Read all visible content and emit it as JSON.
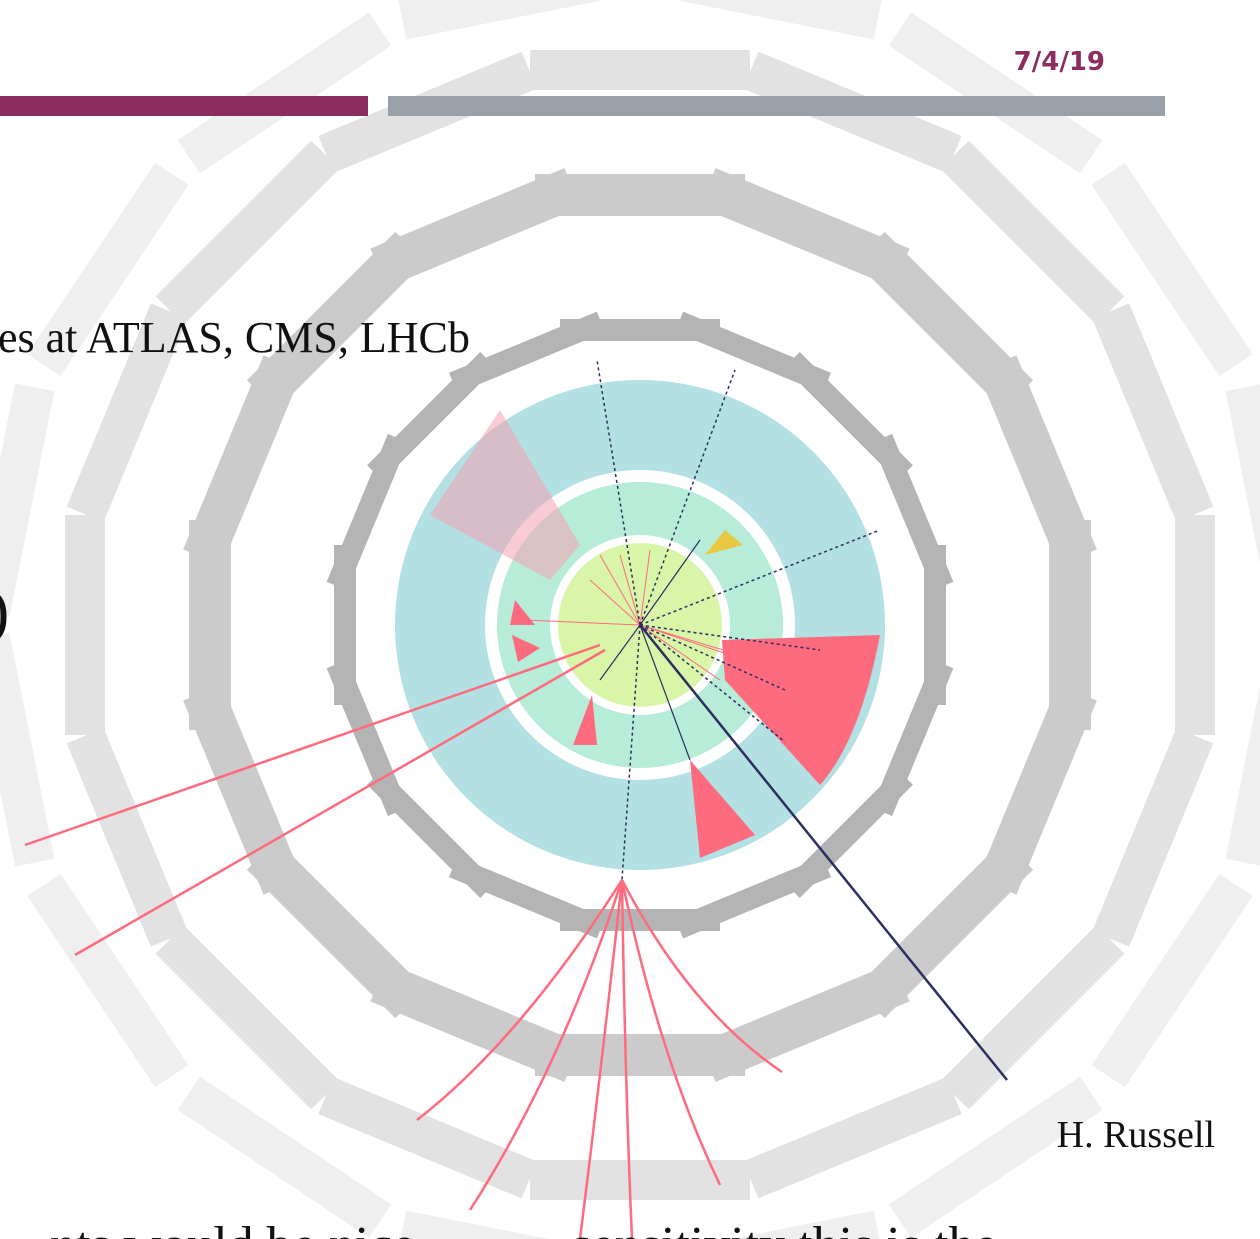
{
  "header": {
    "date": "7/4/19"
  },
  "body": {
    "line1": "es at ATLAS, CMS, LHCb",
    "line2": ")",
    "line3": "nts would be nice            sensitivity this is the"
  },
  "credit": "H. Russell"
}
